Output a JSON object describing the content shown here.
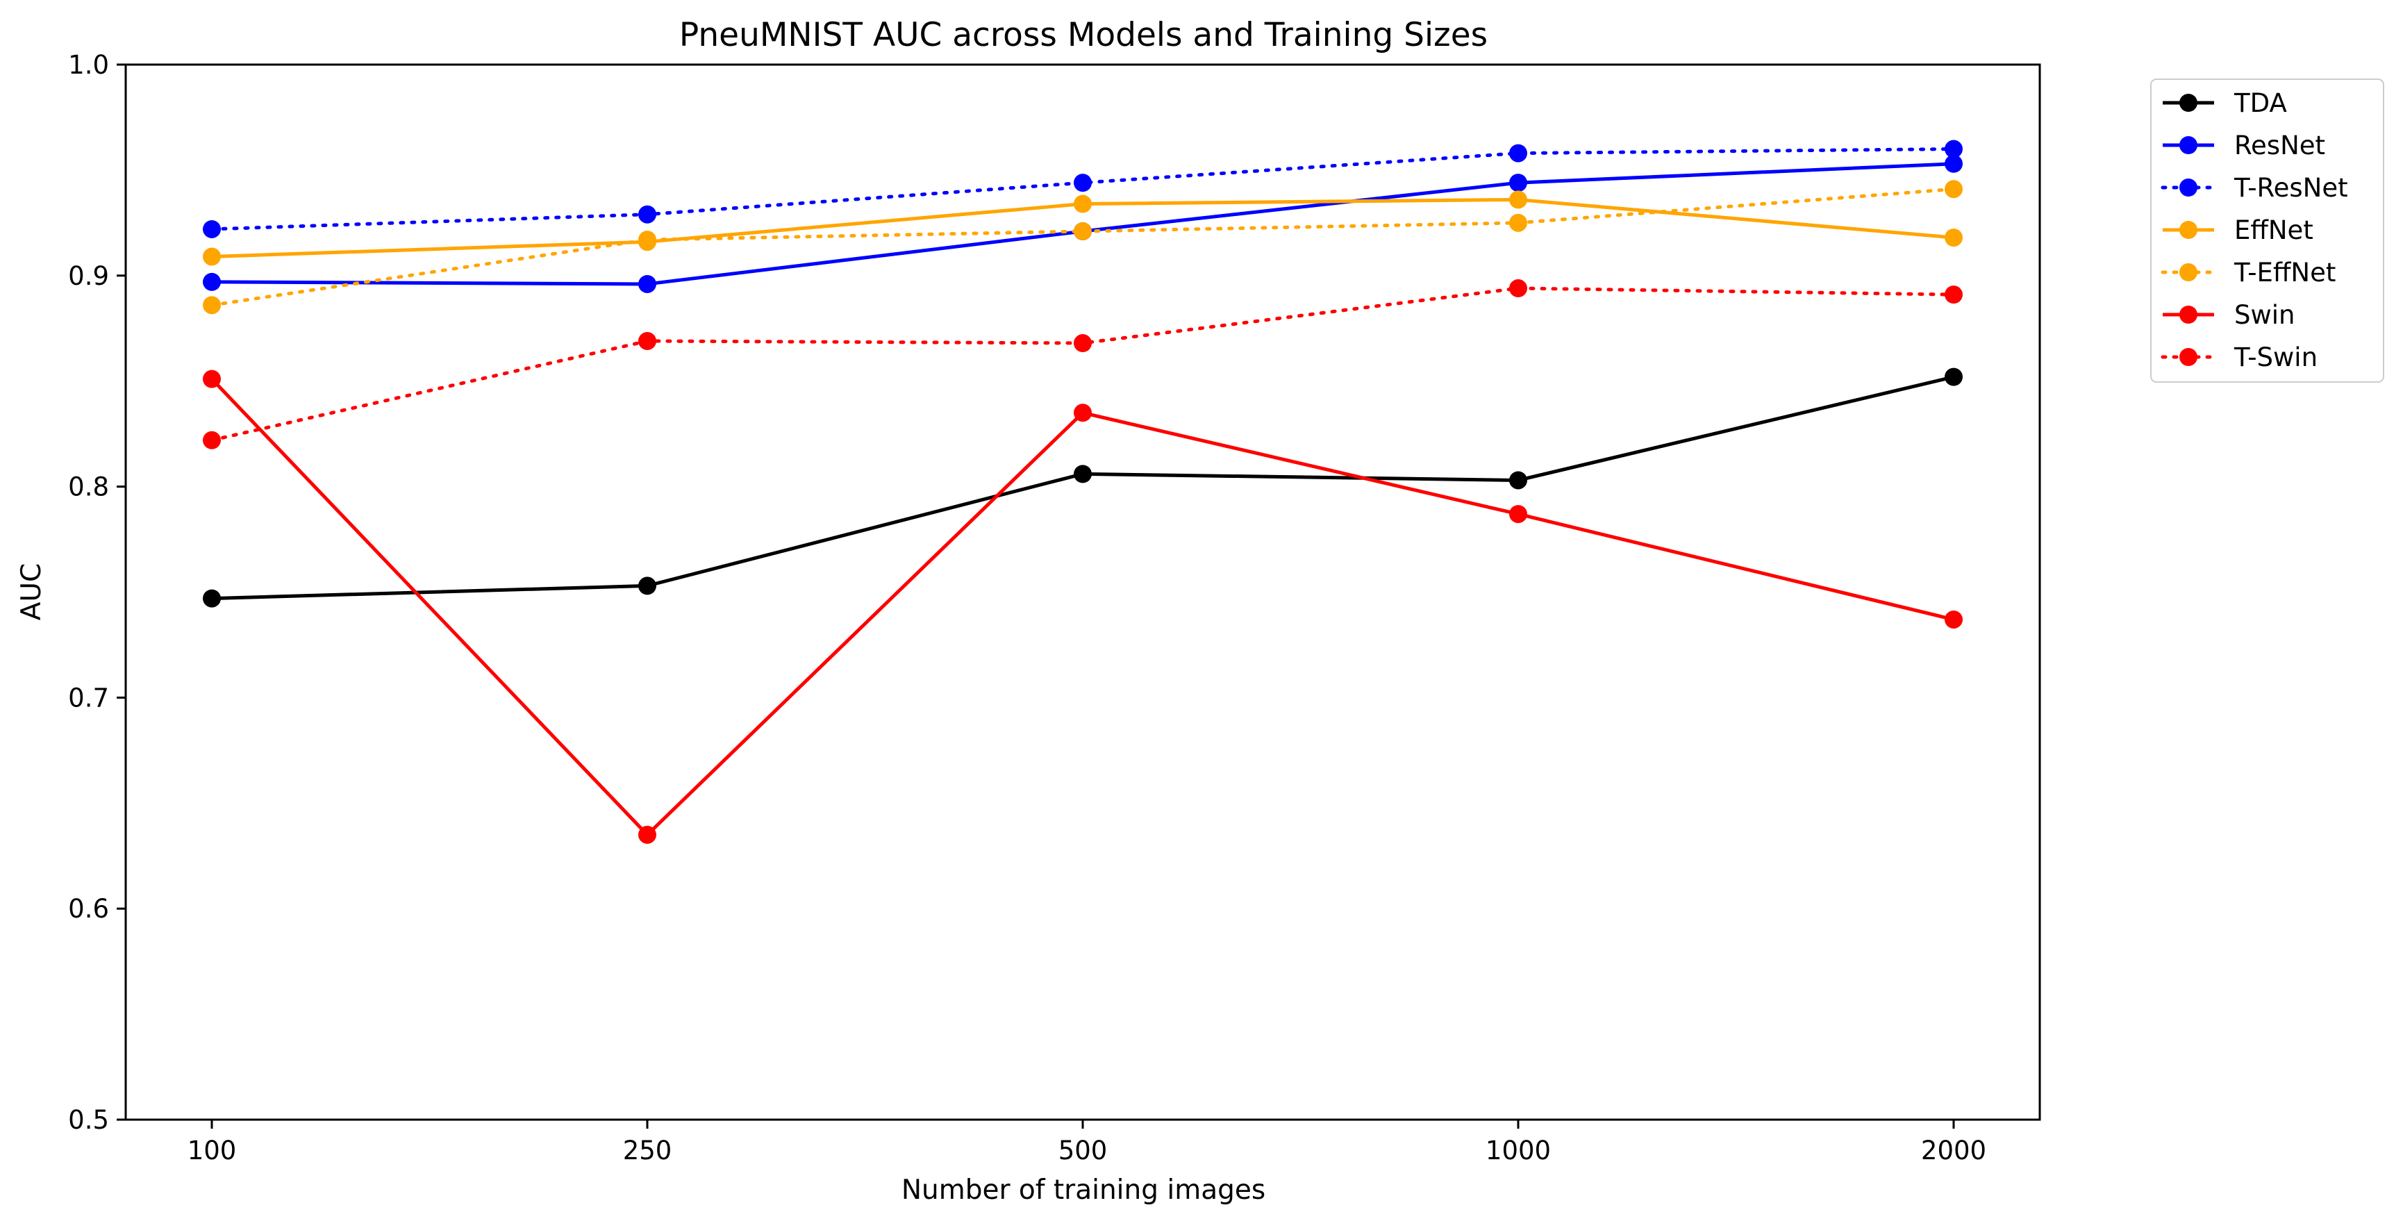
{
  "chart_data": {
    "type": "line",
    "title": "PneuMNIST AUC across Models and Training Sizes",
    "xlabel": "Number of training images",
    "ylabel": "AUC",
    "categories": [
      "100",
      "250",
      "500",
      "1000",
      "2000"
    ],
    "ylim": [
      0.5,
      1.0
    ],
    "yticks": [
      "0.5",
      "0.6",
      "0.7",
      "0.8",
      "0.9",
      "1.0"
    ],
    "grid": false,
    "legend_position": "outside-top-right",
    "series": [
      {
        "name": "TDA",
        "color": "#000000",
        "linestyle": "solid",
        "marker": "circle",
        "values": [
          0.747,
          0.753,
          0.806,
          0.803,
          0.852
        ]
      },
      {
        "name": "ResNet",
        "color": "#0000ff",
        "linestyle": "solid",
        "marker": "circle",
        "values": [
          0.897,
          0.896,
          0.921,
          0.944,
          0.953
        ]
      },
      {
        "name": "T-ResNet",
        "color": "#0000ff",
        "linestyle": "dotted",
        "marker": "circle",
        "values": [
          0.922,
          0.929,
          0.944,
          0.958,
          0.96
        ]
      },
      {
        "name": "EffNet",
        "color": "#ffa500",
        "linestyle": "solid",
        "marker": "circle",
        "values": [
          0.909,
          0.916,
          0.934,
          0.936,
          0.918
        ]
      },
      {
        "name": "T-EffNet",
        "color": "#ffa500",
        "linestyle": "dotted",
        "marker": "circle",
        "values": [
          0.886,
          0.917,
          0.921,
          0.925,
          0.941
        ]
      },
      {
        "name": "Swin",
        "color": "#ff0000",
        "linestyle": "solid",
        "marker": "circle",
        "values": [
          0.851,
          0.635,
          0.835,
          0.787,
          0.737
        ]
      },
      {
        "name": "T-Swin",
        "color": "#ff0000",
        "linestyle": "dotted",
        "marker": "circle",
        "values": [
          0.822,
          0.869,
          0.868,
          0.894,
          0.891
        ]
      }
    ]
  }
}
